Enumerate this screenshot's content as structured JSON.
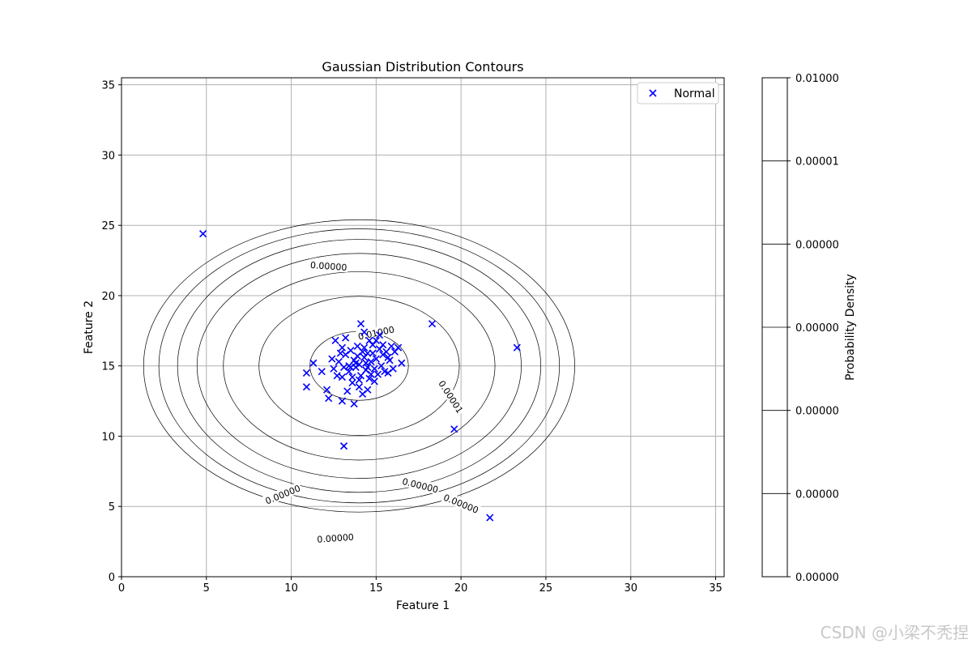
{
  "chart_data": {
    "type": "scatter",
    "title": "Gaussian Distribution Contours",
    "xlabel": "Feature 1",
    "ylabel": "Feature 2",
    "xlim": [
      0,
      35.5
    ],
    "ylim": [
      0,
      35.5
    ],
    "xticks": [
      0,
      5,
      10,
      15,
      20,
      25,
      30,
      35
    ],
    "yticks": [
      0,
      5,
      10,
      15,
      20,
      25,
      30,
      35
    ],
    "grid": true,
    "legend": {
      "placement": "top-right",
      "entries": [
        "Normal"
      ]
    },
    "series": [
      {
        "name": "Normal",
        "marker": "x",
        "color": "#0000ff",
        "points": [
          [
            4.8,
            24.4
          ],
          [
            18.3,
            18.0
          ],
          [
            23.3,
            16.3
          ],
          [
            19.6,
            10.5
          ],
          [
            21.7,
            4.2
          ],
          [
            13.1,
            9.3
          ],
          [
            10.9,
            14.5
          ],
          [
            10.9,
            13.5
          ],
          [
            11.3,
            15.2
          ],
          [
            11.8,
            14.6
          ],
          [
            12.1,
            13.3
          ],
          [
            12.2,
            12.7
          ],
          [
            12.6,
            16.8
          ],
          [
            13.0,
            12.5
          ],
          [
            13.2,
            17.0
          ],
          [
            13.7,
            12.3
          ],
          [
            14.1,
            18.0
          ],
          [
            14.3,
            17.4
          ],
          [
            14.5,
            13.3
          ],
          [
            15.2,
            17.2
          ],
          [
            15.7,
            14.5
          ],
          [
            16.0,
            14.8
          ],
          [
            16.3,
            16.3
          ],
          [
            16.5,
            15.2
          ],
          [
            12.5,
            14.8
          ],
          [
            12.8,
            15.3
          ],
          [
            13.0,
            14.2
          ],
          [
            13.2,
            15.8
          ],
          [
            13.4,
            14.6
          ],
          [
            13.5,
            16.1
          ],
          [
            13.6,
            13.8
          ],
          [
            13.7,
            15.4
          ],
          [
            13.8,
            14.9
          ],
          [
            13.9,
            16.4
          ],
          [
            14.0,
            13.5
          ],
          [
            14.0,
            15.1
          ],
          [
            14.1,
            14.3
          ],
          [
            14.2,
            16.0
          ],
          [
            14.3,
            15.6
          ],
          [
            14.4,
            14.7
          ],
          [
            14.5,
            15.9
          ],
          [
            14.6,
            14.1
          ],
          [
            14.7,
            15.3
          ],
          [
            14.8,
            16.5
          ],
          [
            14.9,
            14.8
          ],
          [
            15.0,
            15.5
          ],
          [
            15.1,
            14.4
          ],
          [
            15.2,
            16.2
          ],
          [
            15.3,
            15.0
          ],
          [
            15.4,
            15.8
          ],
          [
            15.5,
            14.6
          ],
          [
            15.6,
            16.0
          ],
          [
            15.8,
            15.4
          ],
          [
            15.9,
            16.4
          ],
          [
            12.9,
            15.9
          ],
          [
            13.3,
            13.2
          ],
          [
            13.6,
            14.2
          ],
          [
            14.2,
            13.0
          ],
          [
            14.6,
            16.8
          ],
          [
            13.9,
            15.7
          ],
          [
            14.4,
            15.2
          ],
          [
            14.8,
            15.9
          ],
          [
            13.1,
            14.9
          ],
          [
            15.0,
            16.8
          ],
          [
            12.7,
            14.3
          ],
          [
            14.0,
            14.0
          ],
          [
            14.5,
            14.9
          ],
          [
            13.8,
            15.2
          ],
          [
            14.3,
            16.3
          ],
          [
            15.4,
            16.5
          ],
          [
            12.4,
            15.5
          ],
          [
            13.4,
            15.0
          ],
          [
            14.9,
            13.9
          ],
          [
            15.7,
            15.6
          ],
          [
            16.1,
            16.0
          ],
          [
            13.0,
            16.3
          ],
          [
            14.7,
            14.4
          ],
          [
            13.5,
            14.9
          ]
        ]
      }
    ],
    "contours": {
      "color": "#000000",
      "center": [
        14.0,
        15.0
      ],
      "ellipses": [
        {
          "rx": 2.9,
          "ry": 2.45
        },
        {
          "rx": 5.9,
          "ry": 4.95
        },
        {
          "rx": 8.0,
          "ry": 6.7
        },
        {
          "rx": 9.55,
          "ry": 8.0
        },
        {
          "rx": 10.7,
          "ry": 9.0
        },
        {
          "rx": 11.8,
          "ry": 9.75
        },
        {
          "rx": 12.7,
          "ry": 10.4
        }
      ],
      "labels": [
        {
          "text": "0.01000",
          "x": 15.0,
          "y": 17.35,
          "angle": 12
        },
        {
          "text": "0.00001",
          "x": 19.4,
          "y": 12.8,
          "angle": -57
        },
        {
          "text": "0.00000",
          "x": 12.2,
          "y": 22.1,
          "angle": -4
        },
        {
          "text": "0.00000",
          "x": 17.6,
          "y": 6.5,
          "angle": -14
        },
        {
          "text": "0.00000",
          "x": 20.0,
          "y": 5.2,
          "angle": -22
        },
        {
          "text": "0.00000",
          "x": 9.5,
          "y": 5.85,
          "angle": 22
        },
        {
          "text": "0.00000",
          "x": 12.6,
          "y": 2.75,
          "angle": 4
        }
      ]
    },
    "colorbar": {
      "label": "Probability Density",
      "ticks": [
        "0.00000",
        "0.00000",
        "0.00000",
        "0.00000",
        "0.00000",
        "0.00001",
        "0.01000"
      ]
    }
  },
  "watermark": "CSDN @小梁不秃捏"
}
